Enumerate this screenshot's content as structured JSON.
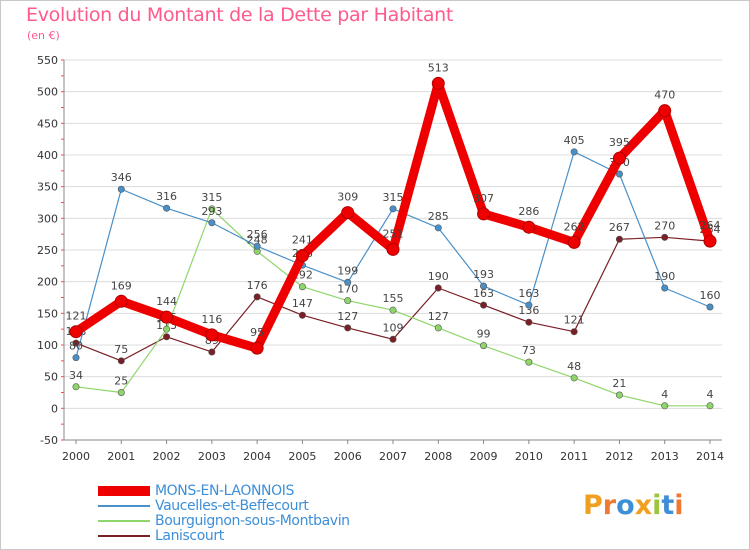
{
  "title": "Evolution du Montant de la Dette par Habitant",
  "subtitle": "(en €)",
  "logo": {
    "letters": [
      "P",
      "r",
      "o",
      "x",
      "i",
      "t",
      "i"
    ],
    "colors": [
      "#f0a020",
      "#f07830",
      "#3d8fd8",
      "#f0a020",
      "#9bc53d",
      "#3d8fd8",
      "#f07830"
    ]
  },
  "chart_data": {
    "type": "line",
    "title": "Evolution du Montant de la Dette par Habitant",
    "ylabel": "(en €)",
    "xlabel": "",
    "ylim": [
      -50,
      550
    ],
    "yticks": [
      -50,
      0,
      50,
      100,
      150,
      200,
      250,
      300,
      350,
      400,
      450,
      500,
      550
    ],
    "x": [
      "2000",
      "2001",
      "2002",
      "2003",
      "2004",
      "2005",
      "2006",
      "2007",
      "2008",
      "2009",
      "2010",
      "2011",
      "2012",
      "2013",
      "2014"
    ],
    "series": [
      {
        "name": "Laniscourt",
        "color": "#7a1f25",
        "values": [
          103,
          75,
          113,
          89,
          176,
          147,
          127,
          109,
          190,
          163,
          136,
          121,
          267,
          270,
          264
        ]
      },
      {
        "name": "Bourguignon-sous-Montbavin",
        "color": "#8fd66a",
        "values": [
          34,
          25,
          125,
          315,
          248,
          192,
          170,
          155,
          127,
          99,
          73,
          48,
          21,
          4,
          4
        ]
      },
      {
        "name": "Vaucelles-et-Beffecourt",
        "color": "#4a90c8",
        "values": [
          80,
          346,
          316,
          293,
          256,
          226,
          199,
          315,
          285,
          193,
          163,
          405,
          370,
          190,
          160
        ]
      },
      {
        "name": "MONS-EN-LAONNOIS",
        "color": "#ee0000",
        "values": [
          121,
          169,
          144,
          116,
          95,
          241,
          309,
          251,
          513,
          307,
          286,
          262,
          395,
          470,
          264
        ]
      }
    ]
  },
  "legend": [
    {
      "name": "MONS-EN-LAONNOIS",
      "color": "#ee0000",
      "thick": true
    },
    {
      "name": "Vaucelles-et-Beffecourt",
      "color": "#4a90c8",
      "thick": false
    },
    {
      "name": "Bourguignon-sous-Montbavin",
      "color": "#8fd66a",
      "thick": false
    },
    {
      "name": "Laniscourt",
      "color": "#7a1f25",
      "thick": false
    }
  ]
}
